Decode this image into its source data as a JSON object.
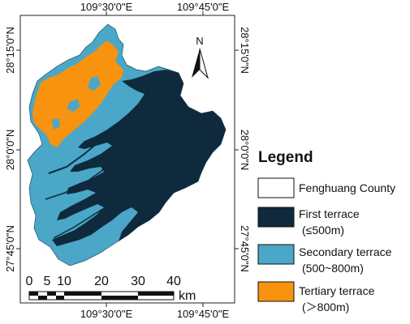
{
  "map": {
    "axis_labels": {
      "top_left": "109°30'0\"E",
      "top_right": "109°45'0\"E",
      "bottom_left": "109°30'0\"E",
      "bottom_right": "109°45'0\"E",
      "left_top": "28°15'0\"N",
      "left_mid": "28°0'0\"N",
      "left_bottom": "27°45'0\"N",
      "right_top": "28°15'0\"N",
      "right_mid": "28°0'0\"N",
      "right_bottom": "27°45'0\"N"
    },
    "north_arrow": {
      "label": "N",
      "icon": "north-arrow-icon"
    },
    "scale_bar": {
      "ticks": [
        "0",
        "5",
        "10",
        "20",
        "30",
        "40"
      ],
      "unit": "km"
    }
  },
  "legend": {
    "title": "Legend",
    "items": [
      {
        "label": "Fenghuang County",
        "sublabel": "",
        "color": "#ffffff"
      },
      {
        "label": "First terrace",
        "sublabel": "(≤500m)",
        "color": "#0e2a3c"
      },
      {
        "label": "Secondary terrace",
        "sublabel": "(500~800m)",
        "color": "#4aa7c8"
      },
      {
        "label": "Tertiary terrace",
        "sublabel": "(＞800m)",
        "color": "#f7930e"
      }
    ]
  },
  "colors": {
    "first_terrace": "#0e2a3c",
    "secondary_terrace": "#4aa7c8",
    "tertiary_terrace": "#f7930e",
    "frame": "#222222"
  }
}
